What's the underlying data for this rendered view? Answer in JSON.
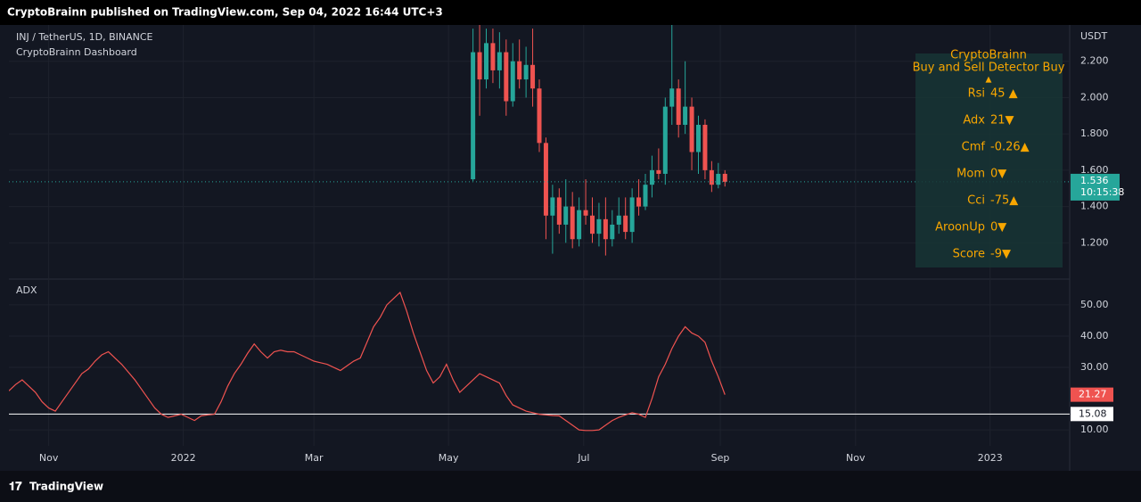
{
  "header": {
    "text": "CryptoBrainn published on TradingView.com, Sep 04, 2022 16:44 UTC+3"
  },
  "footer": {
    "logo": "TradingView"
  },
  "dashboard": {
    "title": "CryptoBrainn",
    "subtitle": "Buy and Sell Detector  Buy",
    "arrow": "▲",
    "rows": [
      [
        "Rsi",
        "45 ▲"
      ],
      [
        "Adx",
        "21▼"
      ],
      [
        "Cmf",
        "-0.26▲"
      ],
      [
        "Mom",
        "0▼"
      ],
      [
        "Cci",
        "-75▲"
      ],
      [
        "AroonUp",
        "0▼"
      ],
      [
        "Score",
        "-9▼"
      ]
    ]
  },
  "chart_data": [
    {
      "type": "candlestick",
      "title": "INJ / TetherUS, 1D, BINANCE",
      "subtitle": "CryptoBrainn Dashboard",
      "y_axis_label": "USDT",
      "countdown": "10:15:38",
      "up_color": "#26a69a",
      "down_color": "#ef5350",
      "xlim": [
        0,
        160
      ],
      "ylim": [
        1.01,
        2.4
      ],
      "yticks": [
        {
          "value": 1.2,
          "label": "1.200"
        },
        {
          "value": 1.4,
          "label": "1.400"
        },
        {
          "value": 1.6,
          "label": "1.600"
        },
        {
          "value": 1.8,
          "label": "1.800"
        },
        {
          "value": 2.0,
          "label": "2.000"
        },
        {
          "value": 2.2,
          "label": "2.200"
        }
      ],
      "x": [
        70,
        71,
        72,
        73,
        74,
        75,
        76,
        77,
        78,
        79,
        80,
        81,
        82,
        83,
        84,
        85,
        86,
        87,
        88,
        89,
        90,
        91,
        92,
        93,
        94,
        95,
        96,
        97,
        98,
        99,
        100,
        101,
        102,
        103,
        104,
        105,
        106,
        107,
        108
      ],
      "open": [
        1.55,
        2.25,
        2.1,
        2.3,
        2.15,
        2.25,
        1.98,
        2.2,
        2.1,
        2.18,
        2.05,
        1.75,
        1.35,
        1.45,
        1.3,
        1.4,
        1.22,
        1.38,
        1.35,
        1.25,
        1.33,
        1.22,
        1.3,
        1.35,
        1.26,
        1.45,
        1.4,
        1.52,
        1.6,
        1.58,
        1.95,
        2.05,
        1.85,
        1.95,
        1.7,
        1.85,
        1.6,
        1.52,
        1.58
      ],
      "high": [
        2.38,
        2.4,
        2.38,
        2.38,
        2.36,
        2.32,
        2.3,
        2.32,
        2.28,
        2.38,
        2.1,
        1.78,
        1.52,
        1.5,
        1.55,
        1.48,
        1.45,
        1.55,
        1.45,
        1.42,
        1.45,
        1.38,
        1.45,
        1.45,
        1.5,
        1.55,
        1.58,
        1.68,
        1.72,
        2.0,
        2.4,
        2.1,
        2.2,
        2.0,
        1.9,
        1.88,
        1.65,
        1.64,
        1.6
      ],
      "low": [
        1.54,
        1.9,
        2.05,
        2.08,
        2.05,
        1.9,
        1.95,
        2.05,
        2.0,
        1.95,
        1.7,
        1.22,
        1.14,
        1.25,
        1.2,
        1.17,
        1.18,
        1.3,
        1.2,
        1.18,
        1.13,
        1.18,
        1.25,
        1.22,
        1.2,
        1.35,
        1.38,
        1.45,
        1.55,
        1.52,
        1.85,
        1.78,
        1.8,
        1.6,
        1.58,
        1.55,
        1.48,
        1.5,
        1.51
      ],
      "close": [
        2.25,
        2.1,
        2.3,
        2.15,
        2.25,
        1.98,
        2.2,
        2.1,
        2.18,
        2.05,
        1.75,
        1.35,
        1.45,
        1.3,
        1.4,
        1.22,
        1.38,
        1.35,
        1.25,
        1.33,
        1.22,
        1.3,
        1.35,
        1.26,
        1.45,
        1.4,
        1.52,
        1.6,
        1.58,
        1.95,
        2.05,
        1.85,
        1.95,
        1.7,
        1.85,
        1.6,
        1.52,
        1.58,
        1.536
      ]
    },
    {
      "type": "line",
      "title": "ADX",
      "color": "#ef5350",
      "level": 15.08,
      "level_color": "#ffffff",
      "xlim": [
        0,
        160
      ],
      "ylim": [
        4.9,
        57.4
      ],
      "xticks": [
        {
          "value": 6,
          "label": "Nov"
        },
        {
          "value": 26.3,
          "label": "2022"
        },
        {
          "value": 46,
          "label": "Mar"
        },
        {
          "value": 66.3,
          "label": "May"
        },
        {
          "value": 86.7,
          "label": "Jul"
        },
        {
          "value": 107.3,
          "label": "Sep"
        },
        {
          "value": 127.7,
          "label": "Nov"
        },
        {
          "value": 148,
          "label": "2023"
        }
      ],
      "yticks": [
        {
          "value": 10,
          "label": "10.00"
        },
        {
          "value": 30,
          "label": "30.00"
        },
        {
          "value": 40,
          "label": "40.00"
        },
        {
          "value": 50,
          "label": "50.00"
        }
      ],
      "values": [
        22.5,
        24.5,
        26,
        24,
        22,
        19,
        17,
        16,
        19,
        22,
        25,
        28,
        29.5,
        32,
        34,
        35,
        33,
        31,
        28.5,
        26,
        23,
        20,
        17,
        15,
        14,
        14.5,
        15,
        14,
        13,
        14.5,
        14.8,
        15,
        19,
        24,
        28,
        31,
        34.5,
        37.5,
        35,
        33,
        35,
        35.5,
        35,
        35,
        34,
        33,
        32,
        31.5,
        31,
        30,
        29,
        30.5,
        32,
        33,
        38,
        43,
        46,
        50,
        52,
        54,
        48,
        41,
        35,
        29,
        25,
        27,
        31,
        26,
        22,
        24,
        26,
        28,
        27,
        26,
        25,
        21,
        18,
        17,
        16,
        15.5,
        15,
        14.8,
        14.6,
        14.5,
        13,
        11.5,
        10,
        9.8,
        9.8,
        10,
        11.5,
        13,
        14,
        14.8,
        15.5,
        15,
        14,
        20,
        27,
        31,
        36,
        40,
        43,
        41,
        40,
        38,
        32,
        27,
        21.27
      ]
    }
  ]
}
